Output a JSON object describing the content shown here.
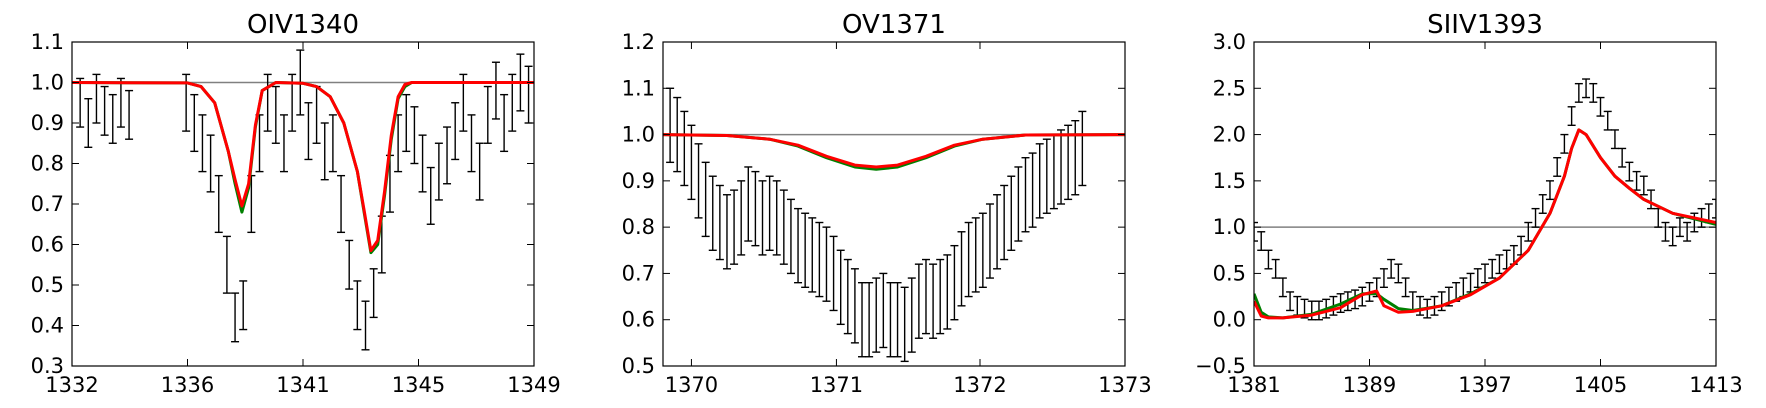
{
  "chart_data": [
    {
      "type": "line",
      "title": "OIV1340",
      "xlim": [
        1332,
        1349
      ],
      "ylim": [
        0.3,
        1.1
      ],
      "xticks": [
        "1332",
        "1336",
        "1341",
        "1345",
        "1349"
      ],
      "xtick_values": [
        1332,
        1336.25,
        1340.5,
        1344.75,
        1349
      ],
      "yticks": [
        "0.3",
        "0.4",
        "0.5",
        "0.6",
        "0.7",
        "0.8",
        "0.9",
        "1.0",
        "1.1"
      ],
      "continuum": 1.0,
      "data_segments": [
        {
          "x": [
            1332.3,
            1332.6,
            1332.9,
            1333.2,
            1333.5,
            1333.8,
            1334.1
          ],
          "y": [
            0.95,
            0.9,
            0.96,
            0.93,
            0.91,
            0.95,
            0.92
          ],
          "err": [
            0.06,
            0.06,
            0.06,
            0.06,
            0.06,
            0.06,
            0.06
          ]
        },
        {
          "x": [
            1336.2,
            1336.5,
            1336.8,
            1337.1,
            1337.4,
            1337.7,
            1338.0,
            1338.3,
            1338.6,
            1338.9,
            1339.2,
            1339.5,
            1339.8,
            1340.1,
            1340.4,
            1340.7,
            1341.0,
            1341.3,
            1341.6,
            1341.9,
            1342.2,
            1342.5,
            1342.8,
            1343.1,
            1343.4,
            1343.7,
            1344.0,
            1344.3,
            1344.6,
            1344.9,
            1345.2,
            1345.5,
            1345.8,
            1346.1,
            1346.4,
            1346.7,
            1347.0,
            1347.3,
            1347.6,
            1347.9,
            1348.2,
            1348.5,
            1348.8
          ],
          "y": [
            0.95,
            0.9,
            0.85,
            0.8,
            0.7,
            0.55,
            0.42,
            0.45,
            0.7,
            0.85,
            0.95,
            0.92,
            0.85,
            0.95,
            1.0,
            0.88,
            0.92,
            0.83,
            0.85,
            0.7,
            0.55,
            0.45,
            0.4,
            0.48,
            0.6,
            0.75,
            0.85,
            0.9,
            0.87,
            0.8,
            0.72,
            0.78,
            0.82,
            0.88,
            0.95,
            0.85,
            0.78,
            0.92,
            0.98,
            0.9,
            0.95,
            1.0,
            0.97
          ],
          "err": [
            0.07,
            0.07,
            0.07,
            0.07,
            0.07,
            0.07,
            0.06,
            0.06,
            0.07,
            0.07,
            0.07,
            0.07,
            0.07,
            0.07,
            0.08,
            0.07,
            0.07,
            0.07,
            0.07,
            0.07,
            0.06,
            0.06,
            0.06,
            0.06,
            0.07,
            0.07,
            0.07,
            0.07,
            0.07,
            0.07,
            0.07,
            0.07,
            0.07,
            0.07,
            0.07,
            0.07,
            0.07,
            0.07,
            0.07,
            0.07,
            0.07,
            0.07,
            0.07
          ]
        }
      ],
      "model_x": [
        1332,
        1336.25,
        1336.75,
        1337.25,
        1337.75,
        1338.0,
        1338.25,
        1338.5,
        1338.75,
        1339.0,
        1339.5,
        1340.5,
        1341.0,
        1341.5,
        1342.0,
        1342.5,
        1342.75,
        1343.0,
        1343.25,
        1343.5,
        1343.75,
        1344.0,
        1344.25,
        1344.5,
        1345.0,
        1349.0
      ],
      "series": [
        {
          "color": "#008000",
          "values": [
            1.0,
            0.999,
            0.99,
            0.95,
            0.83,
            0.75,
            0.68,
            0.74,
            0.89,
            0.98,
            1.0,
            0.998,
            0.99,
            0.965,
            0.9,
            0.78,
            0.68,
            0.58,
            0.6,
            0.72,
            0.86,
            0.96,
            0.99,
            1.0,
            1.0,
            1.0
          ]
        },
        {
          "color": "#ff0000",
          "values": [
            1.0,
            0.999,
            0.99,
            0.95,
            0.83,
            0.76,
            0.695,
            0.75,
            0.895,
            0.98,
            1.0,
            0.998,
            0.99,
            0.965,
            0.9,
            0.78,
            0.685,
            0.585,
            0.61,
            0.73,
            0.87,
            0.965,
            0.995,
            1.0,
            1.0,
            1.0
          ]
        }
      ]
    },
    {
      "type": "line",
      "title": "OV1371",
      "xlim": [
        1369.75,
        1373.0
      ],
      "ylim": [
        0.5,
        1.2
      ],
      "xticks": [
        "1370",
        "1371",
        "1372",
        "1373"
      ],
      "xtick_values": [
        1369.95,
        1370.97,
        1371.98,
        1373.0
      ],
      "yticks": [
        "0.5",
        "0.6",
        "0.7",
        "0.8",
        "0.9",
        "1.0",
        "1.1",
        "1.2"
      ],
      "continuum": 1.0,
      "data_segments": [
        {
          "x": [
            1369.8,
            1369.85,
            1369.9,
            1369.95,
            1370.0,
            1370.05,
            1370.1,
            1370.15,
            1370.2,
            1370.25,
            1370.3,
            1370.35,
            1370.4,
            1370.45,
            1370.5,
            1370.55,
            1370.6,
            1370.65,
            1370.7,
            1370.75,
            1370.8,
            1370.85,
            1370.9,
            1370.95,
            1371.0,
            1371.05,
            1371.1,
            1371.15,
            1371.2,
            1371.25,
            1371.3,
            1371.35,
            1371.4,
            1371.45,
            1371.5,
            1371.55,
            1371.6,
            1371.65,
            1371.7,
            1371.75,
            1371.8,
            1371.85,
            1371.9,
            1371.95,
            1372.0,
            1372.05,
            1372.1,
            1372.15,
            1372.2,
            1372.25,
            1372.3,
            1372.35,
            1372.4,
            1372.45,
            1372.5,
            1372.55,
            1372.6,
            1372.65,
            1372.7
          ],
          "y": [
            1.02,
            1.0,
            0.97,
            0.94,
            0.9,
            0.86,
            0.83,
            0.81,
            0.79,
            0.8,
            0.82,
            0.85,
            0.84,
            0.82,
            0.83,
            0.82,
            0.8,
            0.78,
            0.76,
            0.75,
            0.74,
            0.73,
            0.72,
            0.7,
            0.67,
            0.65,
            0.63,
            0.6,
            0.6,
            0.61,
            0.62,
            0.6,
            0.6,
            0.59,
            0.61,
            0.64,
            0.65,
            0.64,
            0.65,
            0.66,
            0.68,
            0.71,
            0.73,
            0.74,
            0.75,
            0.77,
            0.79,
            0.81,
            0.83,
            0.85,
            0.87,
            0.88,
            0.9,
            0.91,
            0.92,
            0.93,
            0.94,
            0.95,
            0.97
          ],
          "err": [
            0.08,
            0.08,
            0.08,
            0.08,
            0.08,
            0.08,
            0.08,
            0.08,
            0.08,
            0.08,
            0.08,
            0.08,
            0.08,
            0.08,
            0.08,
            0.08,
            0.08,
            0.08,
            0.08,
            0.08,
            0.08,
            0.08,
            0.08,
            0.08,
            0.08,
            0.08,
            0.08,
            0.08,
            0.08,
            0.08,
            0.08,
            0.08,
            0.08,
            0.08,
            0.08,
            0.08,
            0.08,
            0.08,
            0.08,
            0.08,
            0.08,
            0.08,
            0.08,
            0.08,
            0.08,
            0.08,
            0.08,
            0.08,
            0.08,
            0.08,
            0.08,
            0.08,
            0.08,
            0.08,
            0.08,
            0.08,
            0.08,
            0.08,
            0.08
          ]
        }
      ],
      "model_x": [
        1369.75,
        1370.2,
        1370.5,
        1370.7,
        1370.9,
        1371.1,
        1371.25,
        1371.4,
        1371.6,
        1371.8,
        1372.0,
        1372.3,
        1373.0
      ],
      "series": [
        {
          "color": "#008000",
          "values": [
            1.0,
            0.998,
            0.99,
            0.975,
            0.95,
            0.93,
            0.925,
            0.93,
            0.95,
            0.975,
            0.99,
            0.999,
            1.0
          ]
        },
        {
          "color": "#ff0000",
          "values": [
            1.0,
            0.998,
            0.99,
            0.977,
            0.953,
            0.934,
            0.93,
            0.934,
            0.953,
            0.977,
            0.99,
            0.999,
            1.0
          ]
        }
      ]
    },
    {
      "type": "line",
      "title": "SIIV1393",
      "xlim": [
        1381,
        1413
      ],
      "ylim": [
        -0.5,
        3.0
      ],
      "xticks": [
        "1381",
        "1389",
        "1397",
        "1405",
        "1413"
      ],
      "xtick_values": [
        1381,
        1389,
        1397,
        1405,
        1413
      ],
      "yticks": [
        "−0.5",
        "0.0",
        "0.5",
        "1.0",
        "1.5",
        "2.0",
        "2.5",
        "3.0"
      ],
      "continuum": 1.0,
      "data_segments": [
        {
          "x": [
            1381.0,
            1381.5,
            1382.0,
            1382.5,
            1383.0,
            1383.5,
            1384.0,
            1384.5,
            1385.0,
            1385.5,
            1386.0,
            1386.5,
            1387.0,
            1387.5,
            1388.0,
            1388.5,
            1389.0,
            1389.5,
            1390.0,
            1390.5,
            1391.0,
            1391.5,
            1392.0,
            1392.5,
            1393.0,
            1393.5,
            1394.0,
            1394.5,
            1395.0,
            1395.5,
            1396.0,
            1396.5,
            1397.0,
            1397.5,
            1398.0,
            1398.5,
            1399.0,
            1399.5,
            1400.0,
            1400.5,
            1401.0,
            1401.5,
            1402.0,
            1402.5,
            1403.0,
            1403.5,
            1404.0,
            1404.5,
            1405.0,
            1405.5,
            1406.0,
            1406.5,
            1407.0,
            1407.5,
            1408.0,
            1408.5,
            1409.0,
            1409.5,
            1410.0,
            1410.5,
            1411.0,
            1411.5,
            1412.0,
            1412.5,
            1413.0
          ],
          "y": [
            0.95,
            0.85,
            0.65,
            0.55,
            0.35,
            0.2,
            0.15,
            0.12,
            0.1,
            0.1,
            0.12,
            0.15,
            0.18,
            0.2,
            0.22,
            0.25,
            0.3,
            0.35,
            0.45,
            0.55,
            0.5,
            0.35,
            0.2,
            0.15,
            0.12,
            0.15,
            0.2,
            0.25,
            0.3,
            0.35,
            0.4,
            0.45,
            0.5,
            0.55,
            0.6,
            0.65,
            0.7,
            0.8,
            0.95,
            1.1,
            1.25,
            1.4,
            1.65,
            1.9,
            2.2,
            2.45,
            2.5,
            2.45,
            2.3,
            2.15,
            1.95,
            1.75,
            1.6,
            1.5,
            1.45,
            1.3,
            1.1,
            0.95,
            0.9,
            1.0,
            0.95,
            1.05,
            1.1,
            1.15,
            1.2
          ],
          "err": [
            0.1,
            0.1,
            0.1,
            0.1,
            0.1,
            0.1,
            0.1,
            0.1,
            0.1,
            0.1,
            0.1,
            0.1,
            0.1,
            0.1,
            0.1,
            0.1,
            0.1,
            0.1,
            0.1,
            0.1,
            0.1,
            0.1,
            0.1,
            0.1,
            0.1,
            0.1,
            0.1,
            0.1,
            0.1,
            0.1,
            0.1,
            0.1,
            0.1,
            0.1,
            0.1,
            0.1,
            0.1,
            0.1,
            0.1,
            0.1,
            0.1,
            0.1,
            0.1,
            0.1,
            0.1,
            0.1,
            0.1,
            0.1,
            0.1,
            0.1,
            0.1,
            0.1,
            0.1,
            0.1,
            0.1,
            0.1,
            0.1,
            0.1,
            0.1,
            0.1,
            0.1,
            0.1,
            0.1,
            0.1,
            0.1
          ]
        }
      ],
      "model_x": [
        1381.0,
        1381.5,
        1382.0,
        1383.0,
        1385.0,
        1387.0,
        1388.5,
        1389.5,
        1390.0,
        1391.0,
        1392.0,
        1394.0,
        1396.0,
        1398.0,
        1400.0,
        1401.5,
        1402.5,
        1403.0,
        1403.5,
        1404.0,
        1405.0,
        1406.0,
        1407.0,
        1408.0,
        1410.0,
        1413.0
      ],
      "series": [
        {
          "color": "#008000",
          "values": [
            0.28,
            0.08,
            0.03,
            0.02,
            0.06,
            0.17,
            0.28,
            0.28,
            0.22,
            0.12,
            0.1,
            0.15,
            0.28,
            0.45,
            0.75,
            1.15,
            1.55,
            1.85,
            2.05,
            2.0,
            1.75,
            1.55,
            1.42,
            1.3,
            1.15,
            1.03
          ]
        },
        {
          "color": "#ff0000",
          "values": [
            0.2,
            0.04,
            0.02,
            0.02,
            0.05,
            0.13,
            0.27,
            0.31,
            0.15,
            0.08,
            0.09,
            0.15,
            0.27,
            0.45,
            0.75,
            1.15,
            1.55,
            1.85,
            2.05,
            2.0,
            1.75,
            1.55,
            1.42,
            1.3,
            1.15,
            1.05
          ]
        }
      ]
    }
  ]
}
